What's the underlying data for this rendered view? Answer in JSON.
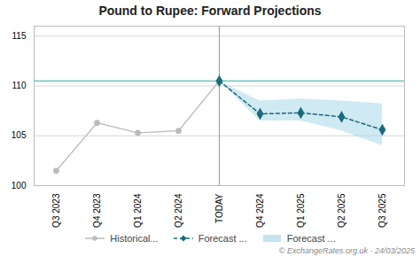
{
  "chart_data": {
    "type": "line",
    "title": "Pound to Rupee: Forward Projections",
    "categories": [
      "Q3 2023",
      "Q4 2023",
      "Q1 2024",
      "Q2 2024",
      "TODAY",
      "Q4 2024",
      "Q1 2025",
      "Q2 2025",
      "Q3 2025"
    ],
    "series": [
      {
        "name": "Historical...",
        "color": "#bbbbbb",
        "marker": "circle",
        "line_style": "solid",
        "values": [
          101.5,
          106.3,
          105.3,
          105.5,
          110.5,
          null,
          null,
          null,
          null
        ]
      },
      {
        "name": "Forecast ...",
        "color": "#1a6b7c",
        "marker": "diamond",
        "line_style": "dashed",
        "values": [
          null,
          null,
          null,
          null,
          110.5,
          107.2,
          107.3,
          106.9,
          105.6
        ]
      }
    ],
    "band": {
      "name": "Forecast ...",
      "color": "#a8d8e8",
      "upper": [
        null,
        null,
        null,
        null,
        110.5,
        108.5,
        108.7,
        108.5,
        108.2
      ],
      "lower": [
        null,
        null,
        null,
        null,
        110.5,
        106.5,
        106.5,
        105.5,
        104.0
      ]
    },
    "reference_line": {
      "value": 110.5,
      "color": "#7ec8c8"
    },
    "vertical_line": {
      "category": "TODAY",
      "color": "#999999"
    },
    "annotations": [
      "© ExchangeRates.org.uk - 24/03/2025"
    ],
    "ylim": [
      100,
      116
    ],
    "yticks": [
      100,
      105,
      110,
      115
    ],
    "grid": true,
    "legend": "bottom"
  }
}
